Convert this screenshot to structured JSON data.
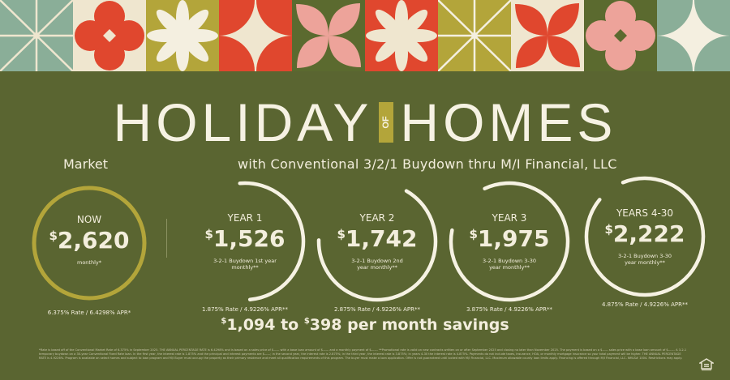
{
  "title": {
    "left": "HOLIDAY",
    "of": "OF",
    "right": "HOMES"
  },
  "market_label": "Market",
  "subtitle": "with Conventional 3/2/1 Buydown thru M/I Financial, LLC",
  "colors": {
    "background": "#5a6531",
    "gold": "#b3a53a",
    "cream": "#efe6cf",
    "red": "#e0472e",
    "sage": "#8aae98",
    "pink": "#eda39a",
    "dark_green": "#5b6a2f"
  },
  "banner_tiles": [
    {
      "icon": "radiating-lines",
      "bg": "#8aae98",
      "fg": "#efe6cf"
    },
    {
      "icon": "four-petal-flower",
      "bg": "#efe6cf",
      "fg": "#e0472e"
    },
    {
      "icon": "eight-petal-flower",
      "bg": "#b3a53a",
      "fg": "#f4efe0"
    },
    {
      "icon": "four-point-star",
      "bg": "#e0472e",
      "fg": "#efe6cf"
    },
    {
      "icon": "x-petals",
      "bg": "#5b6a2f",
      "fg": "#eda39a"
    },
    {
      "icon": "eight-petal-flower",
      "bg": "#e0472e",
      "fg": "#efe6cf"
    },
    {
      "icon": "radiating-lines",
      "bg": "#b3a53a",
      "fg": "#f4efe0"
    },
    {
      "icon": "x-petals",
      "bg": "#efe6cf",
      "fg": "#e0472e"
    },
    {
      "icon": "four-petal-flower",
      "bg": "#5b6a2f",
      "fg": "#eda39a"
    },
    {
      "icon": "four-point-star",
      "bg": "#8aae98",
      "fg": "#f4efe0"
    }
  ],
  "payments": [
    {
      "label": "NOW",
      "amount": "2,620",
      "desc": "monthly*",
      "rate": "6.375% Rate / 6.4298% APR*",
      "ring_fill": 1.0,
      "ring_color": "#b3a53a"
    },
    {
      "label": "YEAR 1",
      "amount": "1,526",
      "desc": "3-2-1 Buydown 1st year monthly**",
      "rate": "1.875% Rate / 4.9226% APR**",
      "ring_fill": 0.5,
      "ring_color": "#f6f2e3"
    },
    {
      "label": "YEAR 2",
      "amount": "1,742",
      "desc": "3-2-1 Buydown 2nd year monthly**",
      "rate": "2.875% Rate / 4.9226% APR**",
      "ring_fill": 0.67,
      "ring_color": "#f6f2e3"
    },
    {
      "label": "YEAR 3",
      "amount": "1,975",
      "desc": "3-2-1 Buydown 3-30 year monthly**",
      "rate": "3.875% Rate / 4.9226% APR**",
      "ring_fill": 0.85,
      "ring_color": "#f6f2e3"
    },
    {
      "label": "YEARS 4-30",
      "amount": "2,222",
      "desc": "3-2-1 Buydown 3-30 year monthly**",
      "rate": "4.875% Rate / 4.9226% APR**",
      "ring_fill": 0.92,
      "ring_color": "#f6f2e3"
    }
  ],
  "savings": {
    "from": "1,094",
    "to_word": "to",
    "to": "398",
    "suffix": "per month savings"
  },
  "fine_print": "*Rate is based off of the Conventional Market Rate of 6.375% in September 2025. THE ANNUAL PERCENTAGE RATE is 6.4298% and is based on a sales price of $—— with a base loan amount of $—— and a monthly payment of $——. **Promotional rate is valid on new contracts written on or after September 2025 and closing no later than November 2025. The payment is based on a $—— sales price with a base loan amount of $——. A 3-2-1 temporary buydown on a 30-year Conventional Fixed Rate loan. In the first year, the interest rate is 1.875% and the principal and interest payments are $——; in the second year, the interest rate is 2.875%; in the third year, the interest rate is 3.875%; in years 4-30 the interest rate is 4.875%. Payments do not include taxes, insurance, HOA, or monthly mortgage insurance so your total payment will be higher. THE ANNUAL PERCENTAGE RATE is 4.9226%. Program is available on select homes and subject to loan program and M/I Buyer must occupy the property as their primary residence and meet all qualification requirements of this program. The buyer must make a loan application. Offer is not guaranteed until locked with M/I Financial, LLC. Maximum allowable county loan limits apply. Financing is offered through M/I Financial, LLC. NMLS# 1004. Restrictions may apply."
}
